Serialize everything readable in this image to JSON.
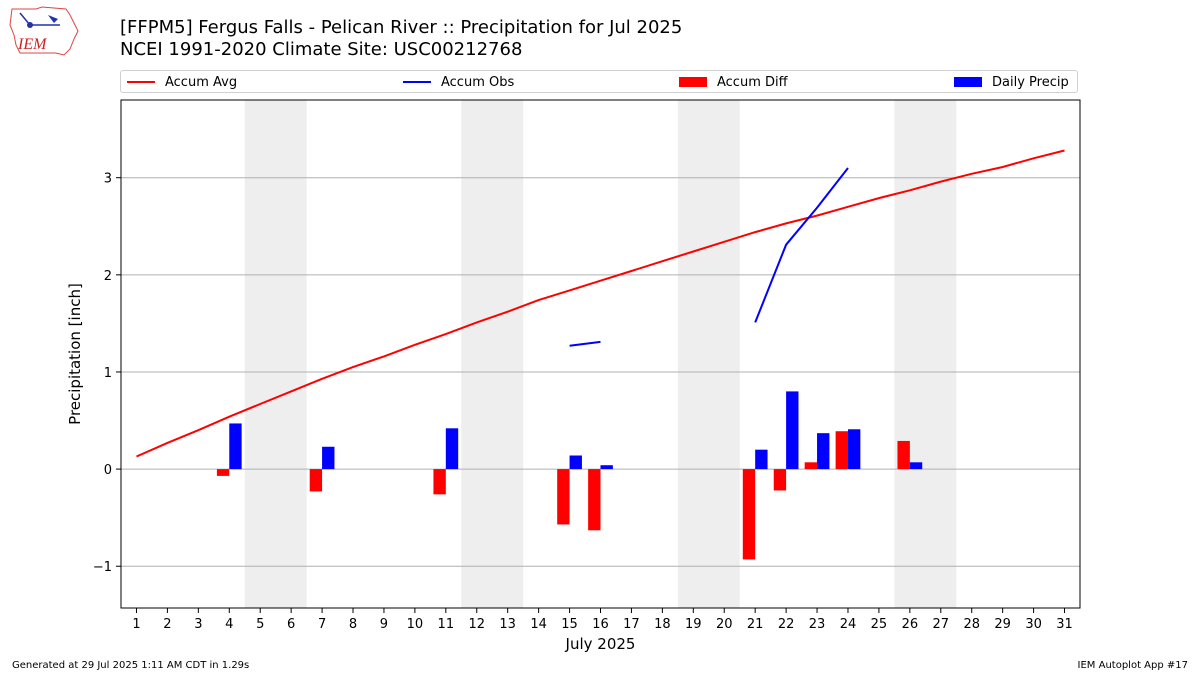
{
  "header": {
    "title": "[FFPM5] Fergus Falls - Pelican River :: Precipitation for Jul 2025",
    "subtitle": "NCEI 1991-2020 Climate Site: USC00212768",
    "logo_text": "IEM"
  },
  "legend": {
    "accum_avg": "Accum Avg",
    "accum_obs": "Accum Obs",
    "accum_diff": "Accum Diff",
    "daily_precip": "Daily Precip"
  },
  "footer": {
    "generated": "Generated at 29 Jul 2025 1:11 AM CDT in 1.29s",
    "app": "IEM Autoplot App #17"
  },
  "chart_data": {
    "type": "bar",
    "xlabel": "July 2025",
    "ylabel": "Precipitation [inch]",
    "xlim": [
      0.5,
      31.5
    ],
    "ylim": [
      -1.43,
      3.8
    ],
    "xticks": [
      1,
      2,
      3,
      4,
      5,
      6,
      7,
      8,
      9,
      10,
      11,
      12,
      13,
      14,
      15,
      16,
      17,
      18,
      19,
      20,
      21,
      22,
      23,
      24,
      25,
      26,
      27,
      28,
      29,
      30,
      31
    ],
    "yticks": [
      -1,
      0,
      1,
      2,
      3
    ],
    "ytick_labels": [
      "−1",
      "0",
      "1",
      "2",
      "3"
    ],
    "grid": "horizontal",
    "legend_position": "top",
    "weekend_shading": [
      [
        4.5,
        6.5
      ],
      [
        11.5,
        13.5
      ],
      [
        18.5,
        20.5
      ],
      [
        25.5,
        27.5
      ]
    ],
    "colors": {
      "accum_avg": "#ff0000",
      "accum_obs": "#0000ff",
      "accum_diff": "#ff0000",
      "daily_precip": "#0000ff",
      "weekend": "#eeeeee",
      "grid": "#b0b0b0"
    },
    "accum_avg": {
      "x": [
        1,
        2,
        3,
        4,
        5,
        6,
        7,
        8,
        9,
        10,
        11,
        12,
        13,
        14,
        15,
        16,
        17,
        18,
        19,
        20,
        21,
        22,
        23,
        24,
        25,
        26,
        27,
        28,
        29,
        30,
        31
      ],
      "y": [
        0.13,
        0.27,
        0.4,
        0.54,
        0.67,
        0.8,
        0.93,
        1.05,
        1.16,
        1.28,
        1.39,
        1.51,
        1.62,
        1.74,
        1.84,
        1.94,
        2.04,
        2.14,
        2.24,
        2.34,
        2.44,
        2.53,
        2.61,
        2.7,
        2.79,
        2.87,
        2.96,
        3.04,
        3.11,
        3.2,
        3.28
      ]
    },
    "accum_obs": {
      "segments": [
        {
          "x": [
            15,
            16
          ],
          "y": [
            1.27,
            1.31
          ]
        },
        {
          "x": [
            21,
            22,
            23,
            24
          ],
          "y": [
            1.51,
            2.31,
            2.69,
            3.1
          ]
        }
      ]
    },
    "accum_diff": {
      "x": [
        4,
        7,
        11,
        15,
        16,
        21,
        22,
        23,
        24,
        26
      ],
      "y": [
        -0.07,
        -0.23,
        -0.26,
        -0.57,
        -0.63,
        -0.93,
        -0.22,
        0.07,
        0.39,
        0.29
      ]
    },
    "daily_precip": {
      "x": [
        4,
        7,
        11,
        15,
        16,
        21,
        22,
        23,
        24,
        26
      ],
      "y": [
        0.47,
        0.23,
        0.42,
        0.14,
        0.04,
        0.2,
        0.8,
        0.37,
        0.41,
        0.07
      ]
    }
  }
}
